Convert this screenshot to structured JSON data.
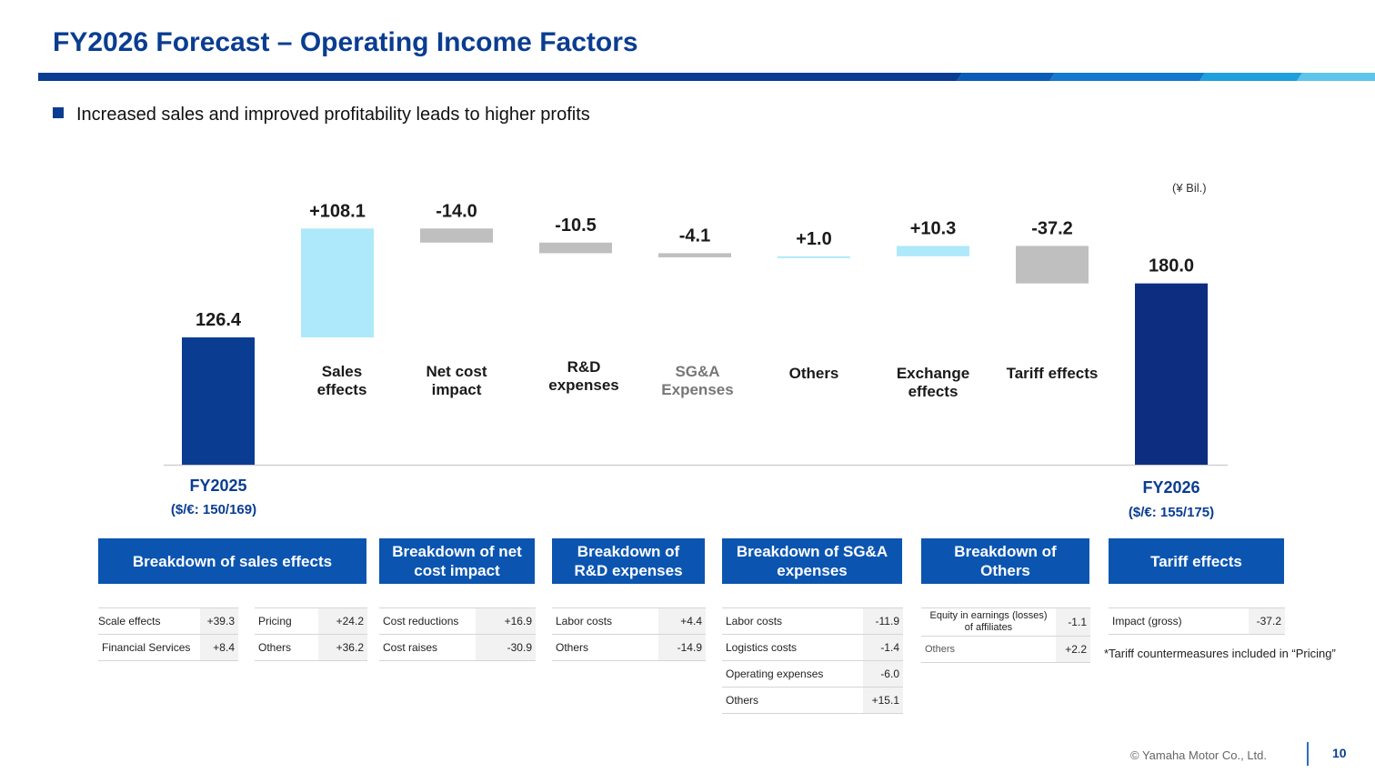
{
  "title": "FY2026 Forecast – Operating Income Factors",
  "bullet": "Increased sales and improved profitability leads to higher profits",
  "unit": "(¥ Bil.)",
  "colors": {
    "title": "#0a3d91",
    "header_bar": "#0b55b0",
    "increase": "#aee9fb",
    "decrease": "#bfbfbf",
    "fy2025_bar": "#0a3d91",
    "fy2026_bar": "#0d2e80"
  },
  "chart_data": {
    "type": "bar",
    "subtype": "waterfall",
    "categories": [
      "FY2025",
      "Sales effects",
      "Net cost impact",
      "R&D expenses",
      "SG&A Expenses",
      "Others",
      "Exchange effects",
      "Tariff effects",
      "FY2026"
    ],
    "category_labels": [
      [
        "FY2025"
      ],
      [
        "Sales",
        "effects"
      ],
      [
        "Net cost",
        "impact"
      ],
      [
        "R&D",
        "expenses"
      ],
      [
        "SG&A",
        "Expenses"
      ],
      [
        "Others"
      ],
      [
        "Exchange",
        "effects"
      ],
      [
        "Tariff effects"
      ],
      [
        "FY2026"
      ]
    ],
    "values": [
      126.4,
      108.1,
      -14.0,
      -10.5,
      -4.1,
      1.0,
      10.3,
      -37.2,
      180.0
    ],
    "value_labels": [
      "126.4",
      "+108.1",
      "-14.0",
      "-10.5",
      "-4.1",
      "+1.0",
      "+10.3",
      "-37.2",
      "180.0"
    ],
    "kinds": [
      "total",
      "delta",
      "delta",
      "delta",
      "delta",
      "delta",
      "delta",
      "delta",
      "total"
    ],
    "sub_labels": [
      "($/€: 150/169)",
      "",
      "",
      "",
      "",
      "",
      "",
      "",
      "($/€: 155/175)"
    ],
    "ylim": [
      0,
      270
    ],
    "grid": false,
    "title": "",
    "xlabel": "",
    "ylabel": ""
  },
  "breakdowns": {
    "sales": {
      "header": "Breakdown of sales effects",
      "left": [
        [
          "Scale effects",
          "+39.3"
        ],
        [
          "Financial Services",
          "+8.4"
        ]
      ],
      "right": [
        [
          "Pricing",
          "+24.2"
        ],
        [
          "Others",
          "+36.2"
        ]
      ]
    },
    "netcost": {
      "header": "Breakdown of net cost impact",
      "rows": [
        [
          "Cost reductions",
          "+16.9"
        ],
        [
          "Cost raises",
          "-30.9"
        ]
      ]
    },
    "rd": {
      "header": "Breakdown of R&D expenses",
      "rows": [
        [
          "Labor costs",
          "+4.4"
        ],
        [
          "Others",
          "-14.9"
        ]
      ]
    },
    "sga": {
      "header": "Breakdown of SG&A expenses",
      "rows": [
        [
          "Labor costs",
          "-11.9"
        ],
        [
          "Logistics costs",
          "-1.4"
        ],
        [
          "Operating expenses",
          "-6.0"
        ],
        [
          "Others",
          "+15.1"
        ]
      ]
    },
    "others": {
      "header": "Breakdown of Others",
      "rows": [
        [
          "Equity in earnings (losses) of affiliates",
          "-1.1"
        ],
        [
          "Others",
          "+2.2"
        ]
      ]
    },
    "tariff": {
      "header": "Tariff effects",
      "rows": [
        [
          "Impact (gross)",
          "-37.2"
        ]
      ],
      "note": "*Tariff countermeasures included in “Pricing”"
    }
  },
  "footer": {
    "copyright": "© Yamaha Motor Co., Ltd.",
    "page": "10"
  }
}
